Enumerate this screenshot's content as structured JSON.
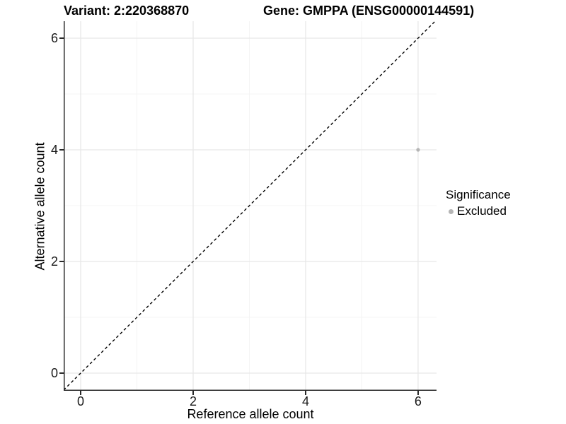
{
  "header": {
    "variant_title": "Variant: 2:220368870",
    "gene_title": "Gene: GMPPA (ENSG00000144591)"
  },
  "chart_data": {
    "type": "scatter",
    "xlabel": "Reference allele count",
    "ylabel": "Alternative allele count",
    "xlim": [
      -0.302,
      6.328
    ],
    "ylim": [
      -0.316,
      6.304
    ],
    "x_ticks": [
      0,
      2,
      4,
      6
    ],
    "y_ticks": [
      0,
      2,
      4,
      6
    ],
    "x_minor_ticks": [
      1,
      3,
      5
    ],
    "y_minor_ticks": [
      1,
      3,
      5
    ],
    "points": [
      {
        "x": 6,
        "y": 4,
        "series": "Excluded",
        "color": "#b5b5b5"
      }
    ],
    "identity_line": {
      "equation": "y = x",
      "style": "dashed",
      "color": "#000000"
    },
    "grid": true,
    "legend": {
      "position": "right",
      "title": "Significance",
      "entries": [
        {
          "label": "Excluded",
          "color": "#b5b5b5"
        }
      ]
    },
    "colors": {
      "point": "#b5b5b5",
      "grid_major": "#e8e8e8",
      "grid_minor": "#f4f4f4",
      "axis": "#2a2a2a",
      "background": "#ffffff"
    }
  }
}
